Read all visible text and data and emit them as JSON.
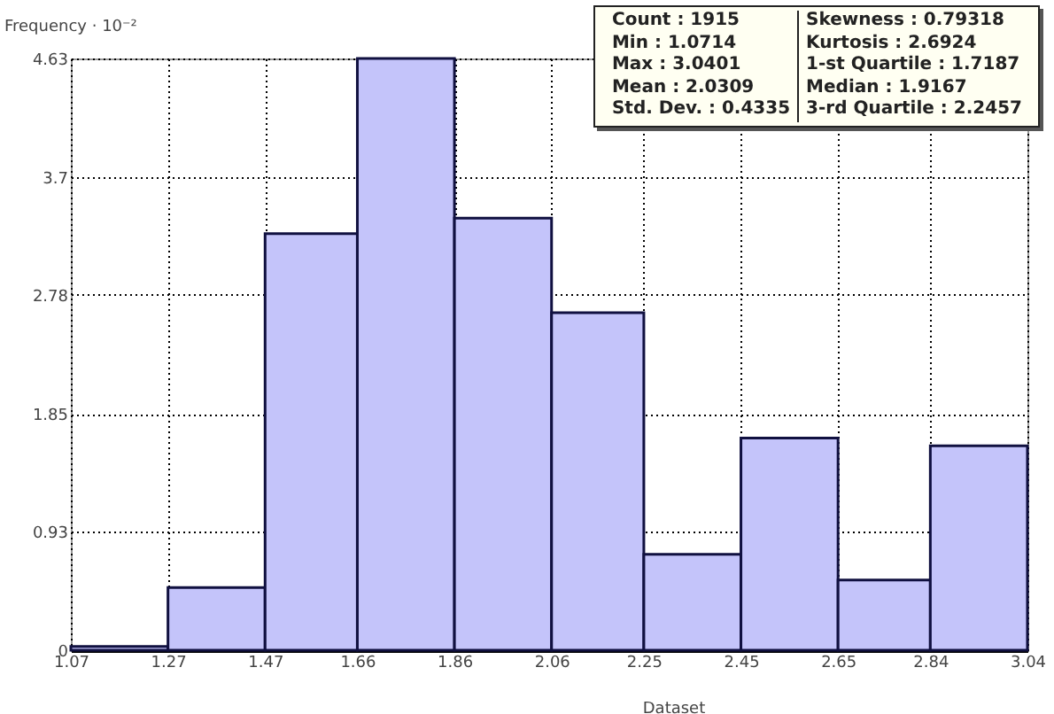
{
  "chart_data": {
    "type": "histogram",
    "xlabel": "Dataset",
    "ylabel": "Frequency · 10⁻²",
    "bins": [
      1.07,
      1.27,
      1.47,
      1.66,
      1.86,
      2.06,
      2.25,
      2.45,
      2.65,
      2.84,
      3.04
    ],
    "values": [
      0.03,
      0.49,
      3.26,
      4.63,
      3.38,
      2.64,
      0.75,
      1.66,
      0.55,
      1.6
    ],
    "color": "#c4c4fa",
    "xlim": [
      1.07,
      3.04
    ],
    "xticks": [
      1.07,
      1.27,
      1.47,
      1.66,
      1.86,
      2.06,
      2.25,
      2.45,
      2.65,
      2.84,
      3.04
    ],
    "ylim": [
      0,
      4.63
    ],
    "yticks": [
      0,
      0.93,
      1.85,
      2.78,
      3.7,
      4.63
    ],
    "grid": true,
    "line_style": "dotted",
    "annotations": [
      "Count : 1915",
      "Min : 1.0714",
      "Max : 3.0401",
      "Mean : 2.0309",
      "Std. Dev. : 0.4335",
      "Skewness : 0.79318",
      "Kurtosis : 2.6924",
      "1-st Quartile : 1.7187",
      "Median : 1.9167",
      "3-rd Quartile : 2.2457"
    ]
  }
}
